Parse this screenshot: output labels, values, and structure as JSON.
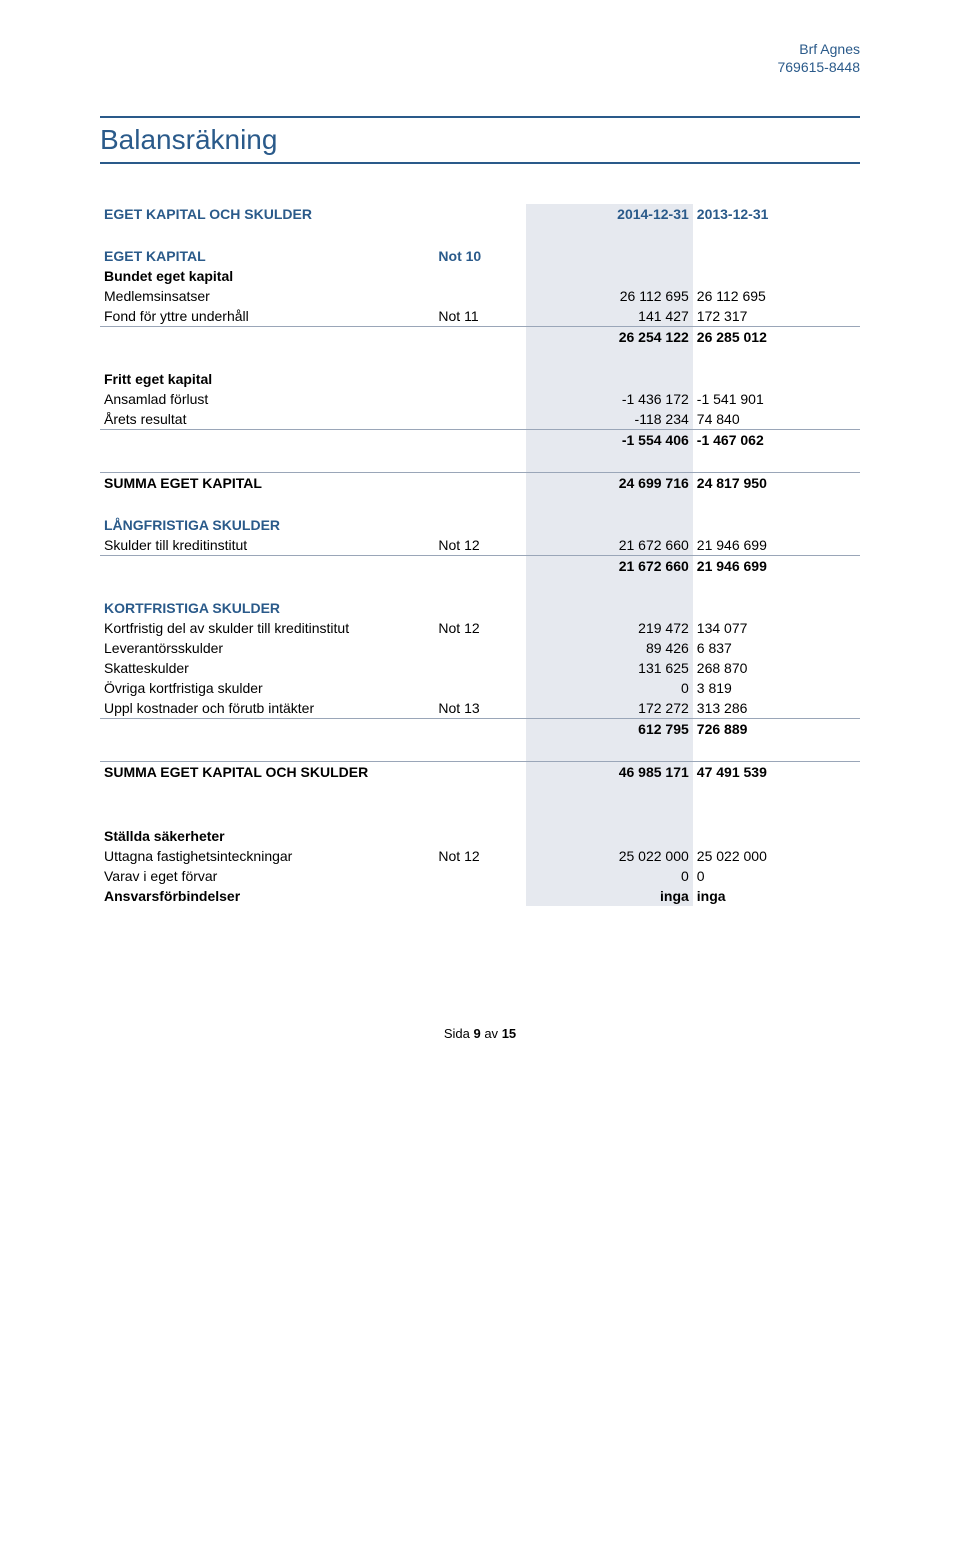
{
  "header": {
    "org_name": "Brf Agnes",
    "org_number": "769615-8448"
  },
  "title": "Balansräkning",
  "columns": {
    "year1": "2014-12-31",
    "year2": "2013-12-31"
  },
  "sections": [
    {
      "header": "EGET KAPITAL OCH SKULDER",
      "is_column_header": true
    },
    {
      "header": "EGET KAPITAL",
      "note": "Not 10",
      "groups": [
        {
          "label": "Bundet eget kapital",
          "rows": [
            {
              "label": "Medlemsinsatser",
              "note": "",
              "y1": "26 112 695",
              "y2": "26 112 695"
            },
            {
              "label": "Fond för yttre underhåll",
              "note": "Not 11",
              "y1": "141 427",
              "y2": "172 317"
            }
          ],
          "subtotal": {
            "y1": "26 254 122",
            "y2": "26 285 012"
          }
        },
        {
          "label": "Fritt eget kapital",
          "rows": [
            {
              "label": "Ansamlad förlust",
              "note": "",
              "y1": "-1 436 172",
              "y2": "-1 541 901"
            },
            {
              "label": "Årets resultat",
              "note": "",
              "y1": "-118 234",
              "y2": "74 840"
            }
          ],
          "subtotal": {
            "y1": "-1 554 406",
            "y2": "-1 467 062"
          }
        }
      ],
      "total": {
        "label": "SUMMA EGET KAPITAL",
        "y1": "24 699 716",
        "y2": "24 817 950"
      }
    },
    {
      "header": "LÅNGFRISTIGA SKULDER",
      "rows": [
        {
          "label": "Skulder till kreditinstitut",
          "note": "Not 12",
          "y1": "21 672 660",
          "y2": "21 946 699"
        }
      ],
      "subtotal": {
        "y1": "21 672 660",
        "y2": "21 946 699"
      }
    },
    {
      "header": "KORTFRISTIGA SKULDER",
      "rows": [
        {
          "label": "Kortfristig del av skulder till kreditinstitut",
          "note": "Not 12",
          "y1": "219 472",
          "y2": "134 077"
        },
        {
          "label": "Leverantörsskulder",
          "note": "",
          "y1": "89 426",
          "y2": "6 837"
        },
        {
          "label": "Skatteskulder",
          "note": "",
          "y1": "131 625",
          "y2": "268 870"
        },
        {
          "label": "Övriga kortfristiga skulder",
          "note": "",
          "y1": "0",
          "y2": "3 819"
        },
        {
          "label": "Uppl kostnader och förutb intäkter",
          "note": "Not 13",
          "y1": "172 272",
          "y2": "313 286"
        }
      ],
      "subtotal": {
        "y1": "612 795",
        "y2": "726 889"
      }
    }
  ],
  "grand_total": {
    "label": "SUMMA EGET KAPITAL OCH SKULDER",
    "y1": "46 985 171",
    "y2": "47 491 539"
  },
  "poststellda": {
    "rows": [
      {
        "label": "Ställda säkerheter",
        "bold": true
      },
      {
        "label": "Uttagna fastighetsinteckningar",
        "note": "Not 12",
        "y1": "25 022 000",
        "y2": "25 022 000"
      },
      {
        "label": "Varav i eget förvar",
        "note": "",
        "y1": "0",
        "y2": "0"
      },
      {
        "label": "Ansvarsförbindelser",
        "bold": true,
        "note": "",
        "y1": "inga",
        "y2": "inga"
      }
    ]
  },
  "footer": "Sida 9 av 15",
  "style": {
    "heading_color": "#2a5a8a",
    "shade_color": "#e6e9ef",
    "rule_color": "#9aa6b8",
    "font_size_body": 14,
    "font_size_title": 28
  }
}
